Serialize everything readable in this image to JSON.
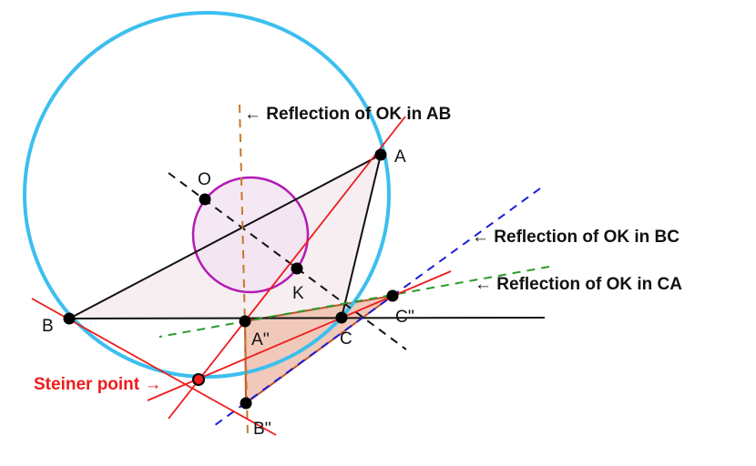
{
  "labels": {
    "A": "A",
    "B": "B",
    "C": "C",
    "O": "O",
    "K": "K",
    "A2": "A''",
    "B2": "B''",
    "C2": "C''"
  },
  "annotations": {
    "ab": "← Reflection of OK in AB",
    "bc": "← Reflection of OK in BC",
    "ca": "← Reflection of OK in CA",
    "steiner": "Steiner point →"
  },
  "colors": {
    "circumcircle": "#3cbfef",
    "circle_ok": "#b41ab4",
    "red_lines": "#ee1c1c",
    "reflection_ab": "#c8782a",
    "reflection_bc": "#1c1cd8",
    "reflection_ca": "#2a9c2a",
    "steiner": "#ee1c1c"
  }
}
